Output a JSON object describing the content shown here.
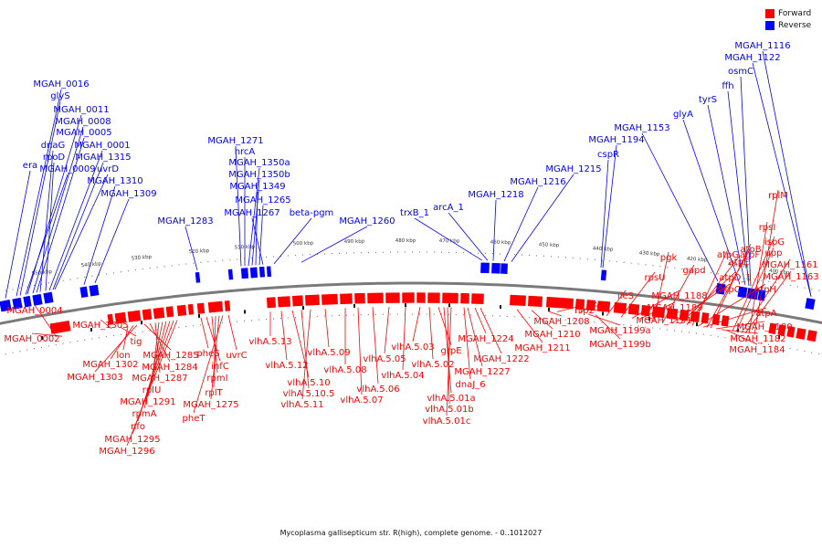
{
  "legend": {
    "forward": {
      "label": "Forward",
      "color": "#ff0000"
    },
    "reverse": {
      "label": "Reverse",
      "color": "#0000ff"
    }
  },
  "caption": "Mycoplasma gallisepticum str. R(high), complete genome. - 0..1012027",
  "ticks": [
    "550 kbp",
    "540 kbp",
    "530 kbp",
    "520 kbp",
    "510 kbp",
    "500 kbp",
    "490 kbp",
    "480 kbp",
    "470 kbp",
    "460 kbp",
    "450 kbp",
    "440 kbp",
    "430 kbp",
    "420 kbp",
    "410 kbp",
    "400 kbp"
  ],
  "reverse_labels": [
    "MGAH_0016",
    "glyS",
    "MGAH_0011",
    "MGAH_0008",
    "MGAH_0005",
    "dnaG",
    "rpoD",
    "MGAH_0001",
    "MGAH_1315",
    "era",
    "MGAH_0009",
    "uvrD",
    "MGAH_1310",
    "MGAH_1309",
    "MGAH_1271",
    "hrcA",
    "MGAH_1350a",
    "MGAH_1350b",
    "MGAH_1349",
    "MGAH_1265",
    "MGAH_1267",
    "beta-pgm",
    "MGAH_1283",
    "MGAH_1260",
    "trxB_1",
    "arcA_1",
    "MGAH_1218",
    "MGAH_1216",
    "MGAH_1215",
    "cspR",
    "MGAH_1194",
    "MGAH_1153",
    "glyA",
    "tyrS",
    "ffh",
    "osmC",
    "MGAH_1122",
    "MGAH_1116"
  ],
  "forward_labels": [
    "MGAH_0004",
    "MGAH_0002",
    "MGAH_1305",
    "tig",
    "lon",
    "MGAH_1302",
    "MGAH_1303",
    "MGAH_1285",
    "MGAH_1284",
    "MGAH_1287",
    "rplU",
    "MGAH_1291",
    "rpmA",
    "nfo",
    "MGAH_1295",
    "MGAH_1296",
    "pheS",
    "infC",
    "rpmI",
    "rplT",
    "MGAH_1275",
    "pheT",
    "uvrC",
    "vlhA.5.13",
    "vlhA.5.12",
    "vlhA.5.10",
    "vlhA.5.10.5",
    "vlhA.5.11",
    "vlhA.5.09",
    "vlhA.5.08",
    "vlhA.5.07",
    "vlhA.5.06",
    "vlhA.5.05",
    "vlhA.5.04",
    "vlhA.5.03",
    "vlhA.5.02",
    "grpE",
    "vlhA.5.01a",
    "vlhA.5.01b",
    "vlhA.5.01c",
    "dnaJ_6",
    "MGAH_1227",
    "MGAH_1224",
    "MGAH_1222",
    "MGAH_1211",
    "MGAH_1210",
    "MGAH_1208",
    "hlp2",
    "fldA",
    "MGAH_1199a",
    "MGAH_1199b",
    "ileS",
    "rpsU",
    "MGAH_1188",
    "MGAH_1189",
    "MGAH_1191",
    "pgk",
    "gapd",
    "atpC",
    "atpD_1",
    "atpE",
    "atpG",
    "atpH",
    "atpA",
    "atpF",
    "atpB",
    "MGAH_1180",
    "MGAH_1182",
    "MGAH_1184",
    "ispG",
    "upp",
    "MGAH_1161",
    "MGAH_1163",
    "rpsI",
    "rplM"
  ]
}
